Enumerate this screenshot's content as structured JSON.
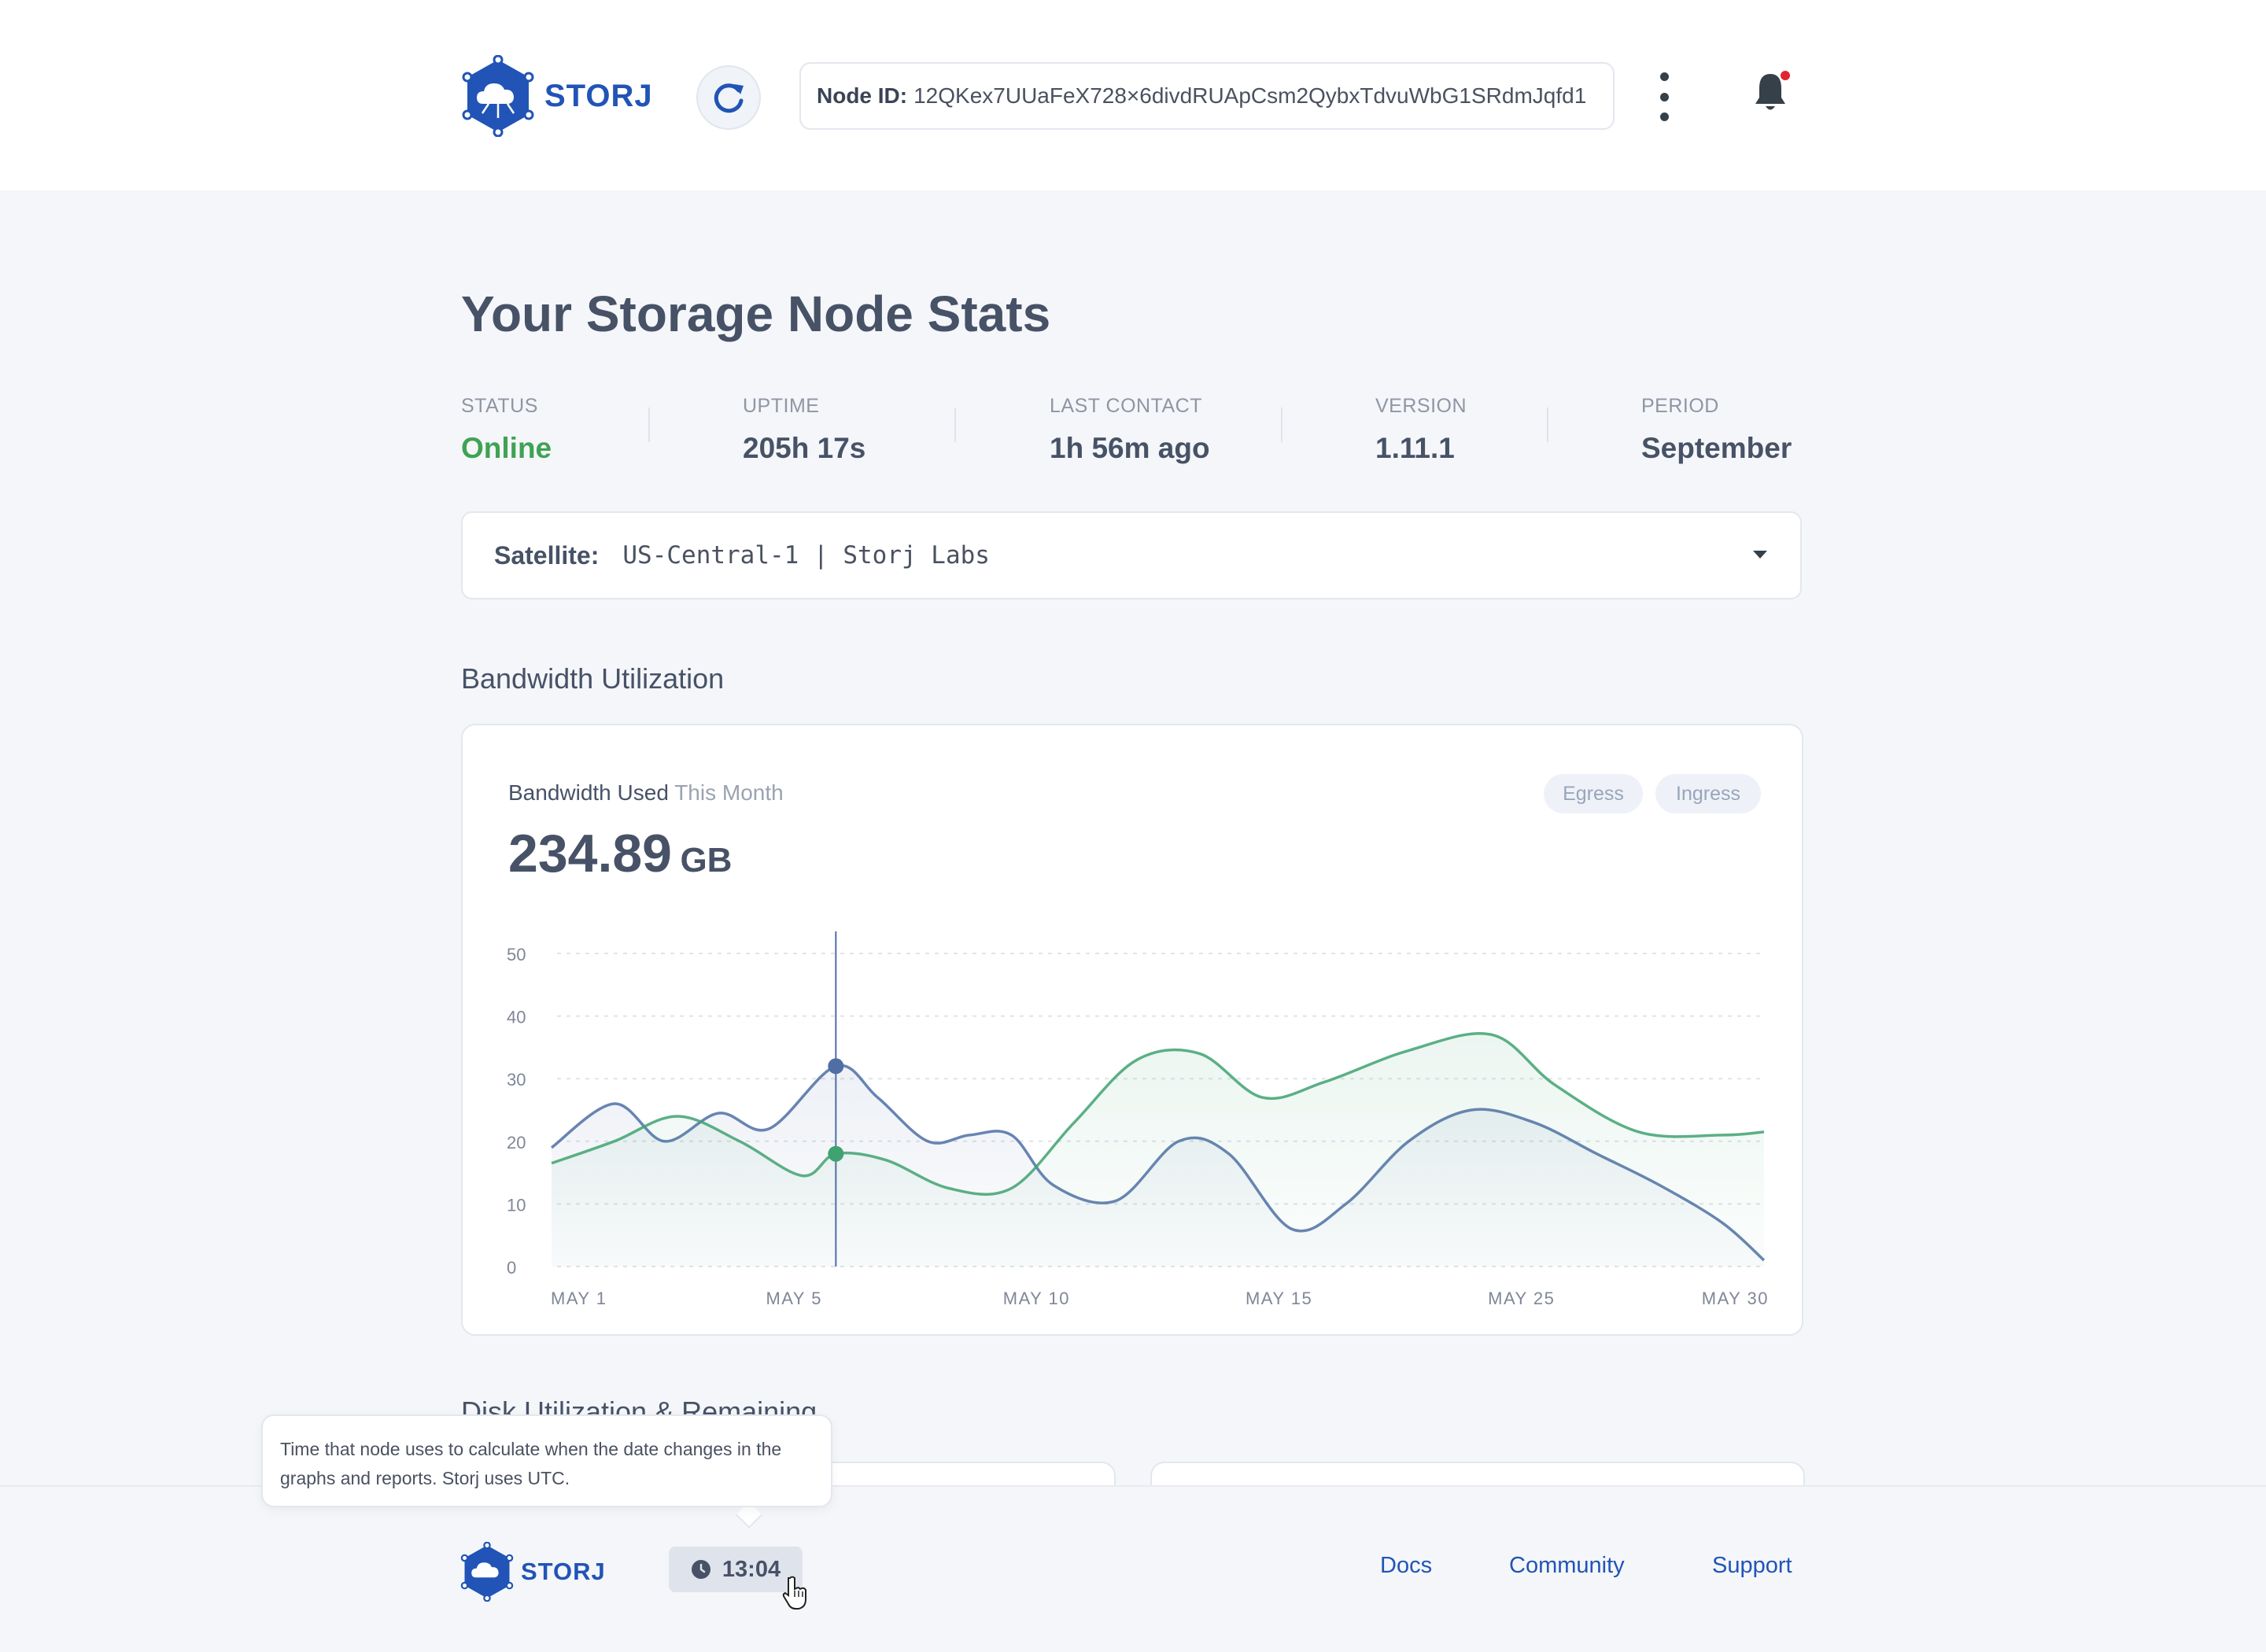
{
  "brand": {
    "name": "STORJ"
  },
  "header": {
    "node_id_label": "Node ID:",
    "node_id_value": "12QKex7UUaFeX728×6divdRUApCsm2QybxTdvuWbG1SRdmJqfd1"
  },
  "page": {
    "title": "Your Storage Node Stats"
  },
  "stats": [
    {
      "label": "STATUS",
      "value": "Online"
    },
    {
      "label": "UPTIME",
      "value": "205h 17s"
    },
    {
      "label": "LAST CONTACT",
      "value": "1h 56m ago"
    },
    {
      "label": "VERSION",
      "value": "1.11.1"
    },
    {
      "label": "PERIOD",
      "value": "September"
    }
  ],
  "satellite": {
    "label": "Satellite:",
    "value": "US-Central-1 | Storj Labs"
  },
  "sections": {
    "bandwidth": "Bandwidth Utilization",
    "disk": "Disk Utilization & Remaining"
  },
  "bandwidth_card": {
    "subtitle": "Bandwidth Used",
    "subtitle_muted": "This Month",
    "amount": "234.89",
    "unit": "GB",
    "toggles": [
      "Egress",
      "Ingress"
    ]
  },
  "chart_data": {
    "type": "line",
    "x_tick_labels": [
      "MAY 1",
      "MAY 5",
      "MAY 10",
      "MAY 15",
      "MAY 25",
      "MAY 30"
    ],
    "y_ticks": [
      0,
      10,
      20,
      30,
      40,
      50
    ],
    "ylim": [
      0,
      50
    ],
    "xlim": [
      1,
      30
    ],
    "grid": true,
    "series": [
      {
        "color": "#4f6ea6",
        "x": [
          1,
          2.5,
          3.7,
          5,
          6.2,
          7.8,
          8.8,
          10,
          11,
          12,
          13,
          14.5,
          16,
          17.2,
          18.7,
          20,
          21.5,
          23,
          24.5,
          26,
          27.5,
          29,
          30
        ],
        "y": [
          19,
          26,
          20,
          24.5,
          22,
          32,
          27,
          20,
          21,
          21,
          13,
          10.5,
          20,
          18,
          6,
          10,
          20,
          25,
          23,
          18,
          13,
          7,
          1
        ]
      },
      {
        "color": "#3fa271",
        "x": [
          1,
          2.5,
          4,
          5.5,
          7,
          7.8,
          9,
          10.5,
          12,
          13.5,
          15,
          16.5,
          18,
          19.5,
          21.5,
          23.5,
          25,
          27,
          29,
          30
        ],
        "y": [
          16.5,
          20,
          24,
          20,
          14.5,
          18,
          17,
          12.5,
          12.5,
          23,
          33,
          34,
          27,
          29.5,
          34.5,
          37,
          29,
          21.5,
          21,
          21.5
        ]
      }
    ],
    "highlight_x": 7.8,
    "highlight_points": [
      32,
      18
    ]
  },
  "footer": {
    "time": "13:04",
    "links": [
      "Docs",
      "Community",
      "Support"
    ],
    "tooltip": "Time that node uses to calculate when the date changes in the graphs and reports. Storj uses UTC."
  },
  "colors": {
    "brand": "#2154b6",
    "online": "#3fa254",
    "egress": "#4f6ea6",
    "ingress": "#3fa271",
    "notification": "#e0242f"
  },
  "icons": [
    "storj-logo-icon",
    "refresh-icon",
    "kebab-menu-icon",
    "bell-icon",
    "chevron-down-icon",
    "clock-icon",
    "hand-cursor-icon"
  ]
}
